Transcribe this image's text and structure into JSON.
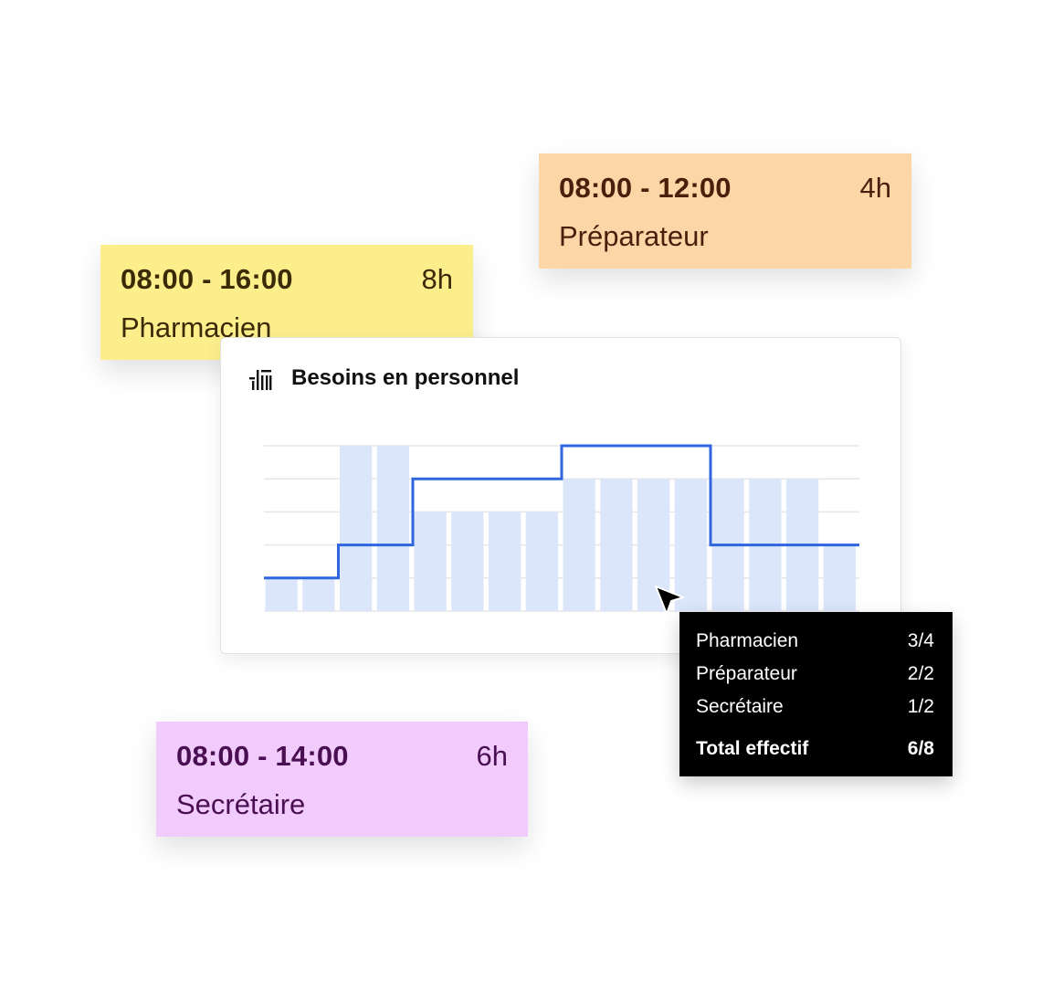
{
  "shifts": [
    {
      "time": "08:00 - 16:00",
      "duration": "8h",
      "role": "Pharmacien",
      "color": "#fdee8c"
    },
    {
      "time": "08:00 - 12:00",
      "duration": "4h",
      "role": "Préparateur",
      "color": "#fdd6a8"
    },
    {
      "time": "08:00 - 14:00",
      "duration": "6h",
      "role": "Secrétaire",
      "color": "#f0cbfb"
    }
  ],
  "chart": {
    "title": "Besoins en personnel",
    "icon": "bar-chart-icon"
  },
  "chart_data": {
    "type": "bar",
    "bar_color": "#dbe6fb",
    "line_color": "#2f66e0",
    "ylim": [
      0,
      5
    ],
    "grid": true,
    "values": [
      1,
      1,
      5,
      5,
      3,
      3,
      3,
      3,
      4,
      4,
      4,
      4,
      4,
      4,
      4,
      2
    ],
    "series": [
      {
        "values": [
          1,
          1,
          2,
          2,
          4,
          4,
          4,
          4,
          5,
          5,
          5,
          5,
          2,
          2,
          2,
          2
        ],
        "style": "step-line"
      }
    ]
  },
  "tooltip": {
    "rows": [
      {
        "label": "Pharmacien",
        "value": "3/4"
      },
      {
        "label": "Préparateur",
        "value": "2/2"
      },
      {
        "label": "Secrétaire",
        "value": "1/2"
      }
    ],
    "total": {
      "label": "Total effectif",
      "value": "6/8"
    }
  }
}
